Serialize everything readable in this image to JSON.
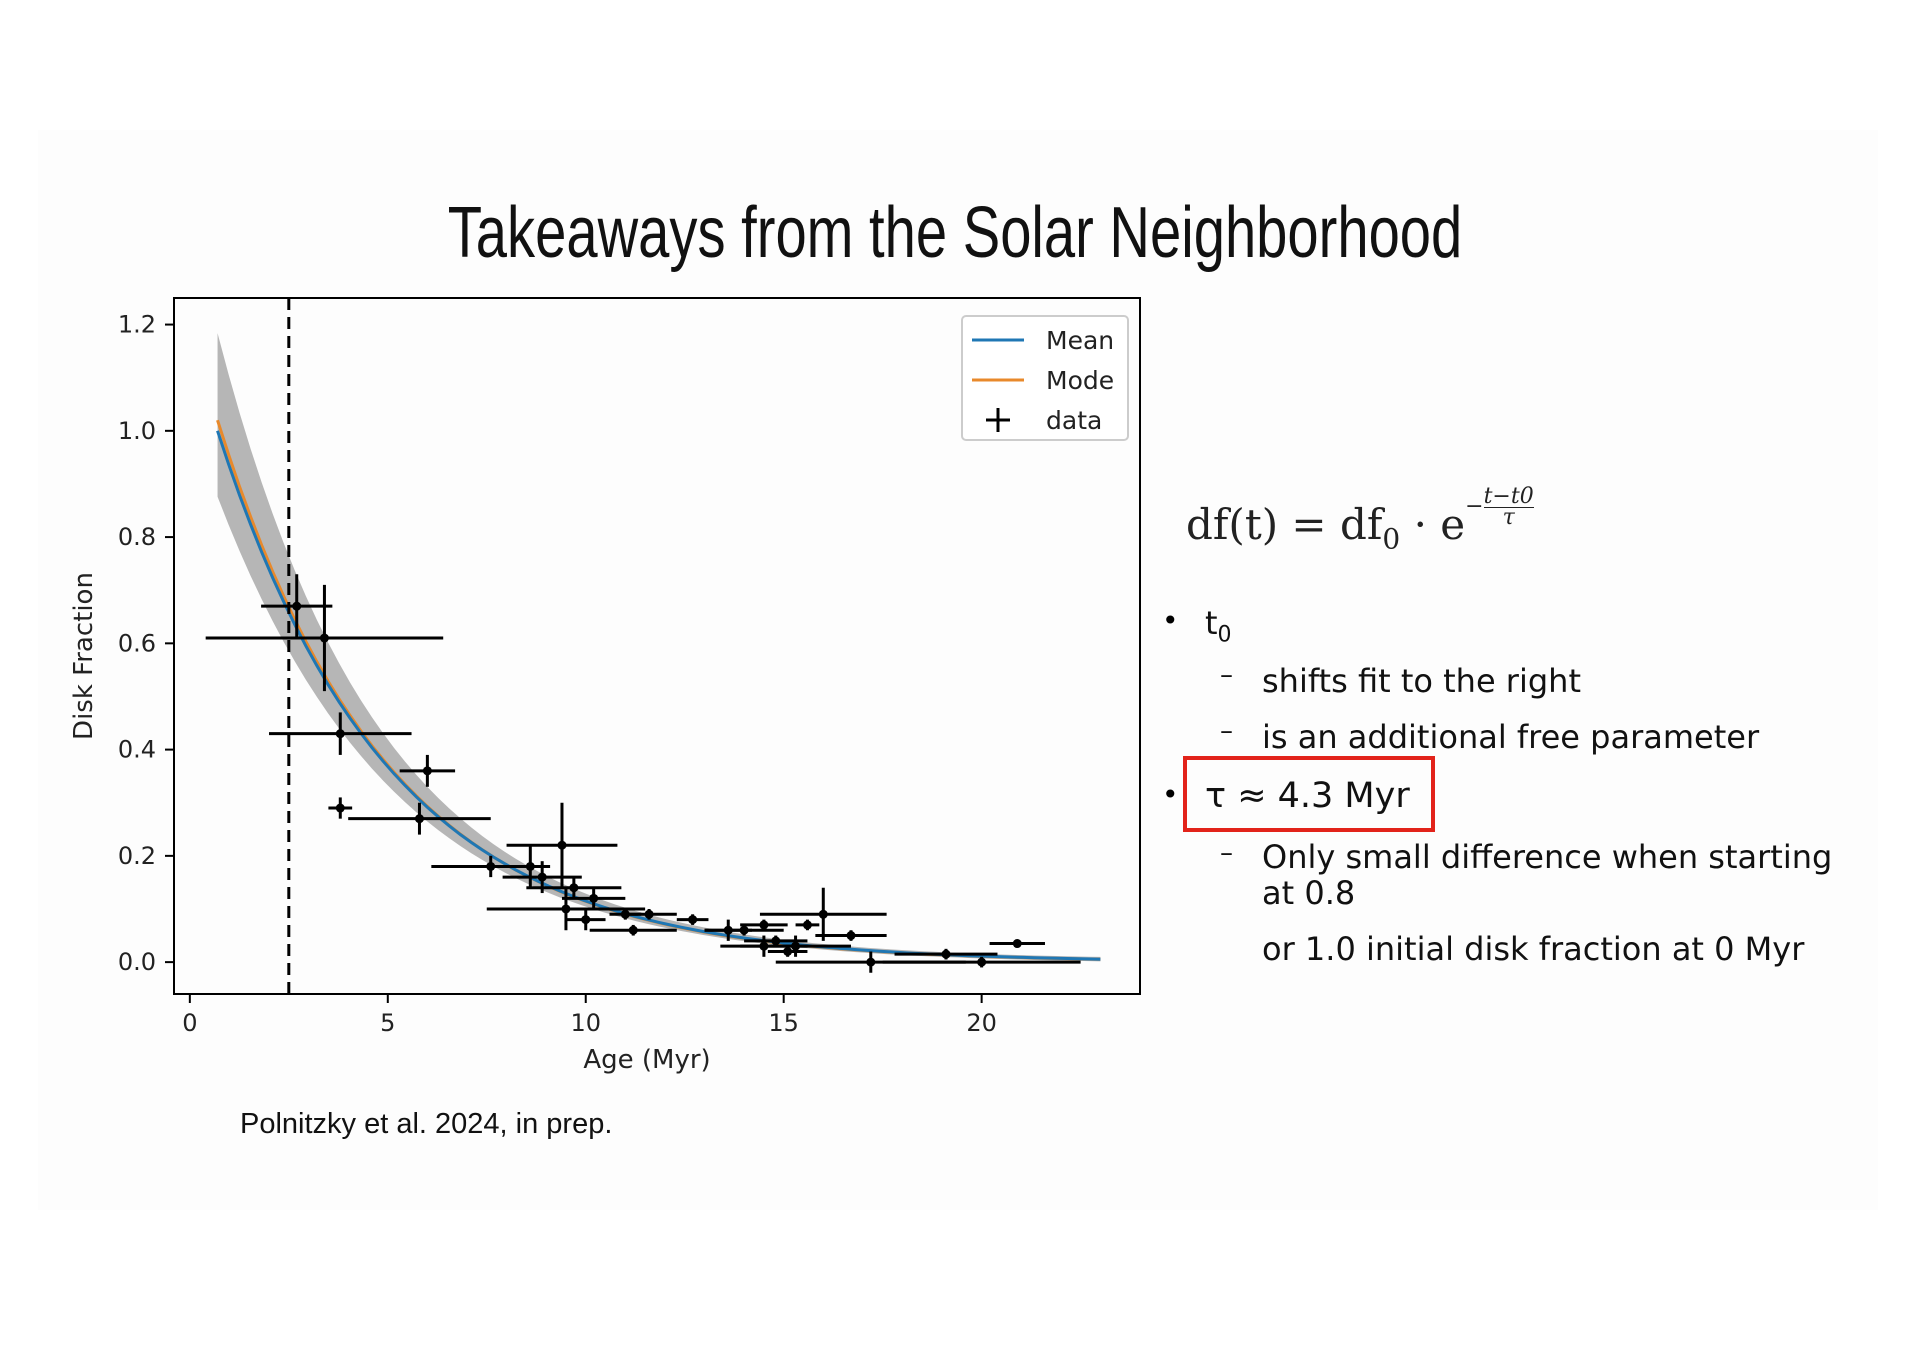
{
  "slide": {
    "title": "Takeaways from the Solar Neighborhood",
    "citation": "Polnitzky et al. 2024, in prep."
  },
  "formula": {
    "lhs": "df(t) = df",
    "sub": "0",
    "mid": " · e",
    "exp_sign": "−",
    "exp_num": "t−t0",
    "exp_den": "τ"
  },
  "bullets": {
    "t0_label": "t",
    "t0_sub": "0",
    "t0_points": [
      "shifts fit to the right",
      "is an additional free parameter"
    ],
    "tau_label": "τ ≈ 4.3 Myr",
    "tau_points": [
      "Only small difference when starting",
      "at 0.8",
      "or 1.0 initial disk fraction at 0 Myr"
    ],
    "bullet_char": "•",
    "dash_char": "–"
  },
  "colors": {
    "mean": "#1f77b4",
    "mode": "#e8892b",
    "band": "#a9a9a9",
    "data": "#000000",
    "highlight": "#e2231a"
  },
  "chart_data": {
    "type": "scatter",
    "xlabel": "Age (Myr)",
    "ylabel": "Disk Fraction",
    "xlim": [
      -0.4,
      24
    ],
    "ylim": [
      -0.06,
      1.25
    ],
    "xticks": [
      0,
      5,
      10,
      15,
      20
    ],
    "yticks": [
      0.0,
      0.2,
      0.4,
      0.6,
      0.8,
      1.0,
      1.2
    ],
    "xtick_labels": [
      "0",
      "5",
      "10",
      "15",
      "20"
    ],
    "ytick_labels": [
      "0.0",
      "0.2",
      "0.4",
      "0.6",
      "0.8",
      "1.0",
      "1.2"
    ],
    "vline_x": 2.5,
    "legend": {
      "position": "top-right",
      "entries": [
        "Mean",
        "Mode",
        "data"
      ]
    },
    "fit": {
      "x_start": 0.7,
      "x_end": 23.0,
      "mean": {
        "A": 1.0,
        "t0": 0.7,
        "tau": 4.3
      },
      "mode": {
        "A": 1.02,
        "t0": 0.7,
        "tau": 4.25
      },
      "band_at_start": [
        0.88,
        1.18
      ],
      "band_at_end": [
        0.0,
        0.015
      ]
    },
    "series": [
      {
        "name": "data",
        "points": [
          {
            "x": 2.7,
            "y": 0.67,
            "xerr": 0.9,
            "yerr": 0.06
          },
          {
            "x": 3.4,
            "y": 0.61,
            "xerr": 3.0,
            "yerr": 0.1
          },
          {
            "x": 3.8,
            "y": 0.43,
            "xerr": 1.8,
            "yerr": 0.04
          },
          {
            "x": 3.8,
            "y": 0.29,
            "xerr": 0.3,
            "yerr": 0.02
          },
          {
            "x": 6.0,
            "y": 0.36,
            "xerr": 0.7,
            "yerr": 0.03
          },
          {
            "x": 5.8,
            "y": 0.27,
            "xerr": 1.8,
            "yerr": 0.03
          },
          {
            "x": 7.6,
            "y": 0.18,
            "xerr": 1.5,
            "yerr": 0.02
          },
          {
            "x": 8.6,
            "y": 0.18,
            "xerr": 0.0,
            "yerr": 0.04
          },
          {
            "x": 8.9,
            "y": 0.16,
            "xerr": 1.0,
            "yerr": 0.03
          },
          {
            "x": 9.4,
            "y": 0.22,
            "xerr": 1.4,
            "yerr": 0.08
          },
          {
            "x": 9.7,
            "y": 0.14,
            "xerr": 1.2,
            "yerr": 0.02
          },
          {
            "x": 10.2,
            "y": 0.12,
            "xerr": 0.8,
            "yerr": 0.02
          },
          {
            "x": 9.5,
            "y": 0.1,
            "xerr": 2.0,
            "yerr": 0.04
          },
          {
            "x": 10.0,
            "y": 0.08,
            "xerr": 0.5,
            "yerr": 0.02
          },
          {
            "x": 11.0,
            "y": 0.09,
            "xerr": 0.4,
            "yerr": 0.01
          },
          {
            "x": 11.6,
            "y": 0.09,
            "xerr": 0.7,
            "yerr": 0.01
          },
          {
            "x": 11.2,
            "y": 0.06,
            "xerr": 1.1,
            "yerr": 0.01
          },
          {
            "x": 12.7,
            "y": 0.08,
            "xerr": 0.4,
            "yerr": 0.01
          },
          {
            "x": 13.6,
            "y": 0.06,
            "xerr": 0.6,
            "yerr": 0.02
          },
          {
            "x": 14.0,
            "y": 0.06,
            "xerr": 1.0,
            "yerr": 0.01
          },
          {
            "x": 14.5,
            "y": 0.07,
            "xerr": 0.6,
            "yerr": 0.01
          },
          {
            "x": 14.5,
            "y": 0.03,
            "xerr": 1.1,
            "yerr": 0.02
          },
          {
            "x": 14.8,
            "y": 0.04,
            "xerr": 0.8,
            "yerr": 0.01
          },
          {
            "x": 15.1,
            "y": 0.02,
            "xerr": 0.5,
            "yerr": 0.01
          },
          {
            "x": 15.3,
            "y": 0.03,
            "xerr": 1.4,
            "yerr": 0.02
          },
          {
            "x": 15.6,
            "y": 0.07,
            "xerr": 0.3,
            "yerr": 0.01
          },
          {
            "x": 16.0,
            "y": 0.09,
            "xerr": 1.6,
            "yerr": 0.05
          },
          {
            "x": 16.7,
            "y": 0.05,
            "xerr": 0.9,
            "yerr": 0.01
          },
          {
            "x": 17.2,
            "y": 0.0,
            "xerr": 2.4,
            "yerr": 0.02
          },
          {
            "x": 19.1,
            "y": 0.015,
            "xerr": 1.3,
            "yerr": 0.01
          },
          {
            "x": 20.0,
            "y": 0.0,
            "xerr": 2.5,
            "yerr": 0.01
          },
          {
            "x": 20.9,
            "y": 0.035,
            "xerr": 0.7,
            "yerr": 0.005
          }
        ]
      }
    ]
  }
}
